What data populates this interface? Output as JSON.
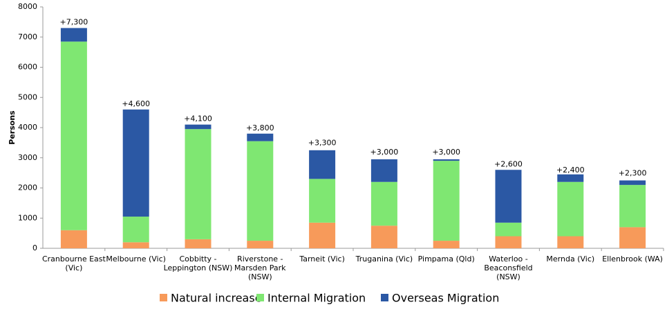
{
  "chart_data": {
    "type": "stacked_bar",
    "y_label": "Persons",
    "categories": [
      [
        "Cranbourne East",
        "(Vic)"
      ],
      [
        "Melbourne (Vic)"
      ],
      [
        "Cobbitty -",
        "Leppington (NSW)"
      ],
      [
        "Riverstone -",
        "Marsden Park",
        "(NSW)"
      ],
      [
        "Tarneit (Vic)"
      ],
      [
        "Truganina (Vic)"
      ],
      [
        "Pimpama (Qld)"
      ],
      [
        "Waterloo -",
        "Beaconsfield",
        "(NSW)"
      ],
      [
        "Mernda (Vic)"
      ],
      [
        "Ellenbrook (WA)"
      ]
    ],
    "series": [
      {
        "name": "Natural increase",
        "color": "#f79a5a",
        "values": [
          600,
          200,
          300,
          250,
          850,
          750,
          250,
          400,
          400,
          700
        ]
      },
      {
        "name": "Internal Migration",
        "color": "#7fe772",
        "values": [
          6250,
          850,
          3650,
          3300,
          1450,
          1450,
          2650,
          450,
          1800,
          1400
        ]
      },
      {
        "name": "Overseas Migration",
        "color": "#2b58a4",
        "values": [
          450,
          3550,
          150,
          250,
          950,
          750,
          50,
          1750,
          250,
          150
        ]
      }
    ],
    "totals": {
      "values": [
        7300,
        4600,
        4100,
        3800,
        3300,
        3000,
        3000,
        2600,
        2400,
        2300
      ],
      "value_labels": [
        "+7,300",
        "+4,600",
        "+4,100",
        "+3,800",
        "+3,300",
        "+3,000",
        "+3,000",
        "+2,600",
        "+2,400",
        "+2,300"
      ]
    },
    "ylim": [
      0,
      8000
    ],
    "yticks": [
      0,
      1000,
      2000,
      3000,
      4000,
      5000,
      6000,
      7000,
      8000
    ],
    "grid": false
  }
}
